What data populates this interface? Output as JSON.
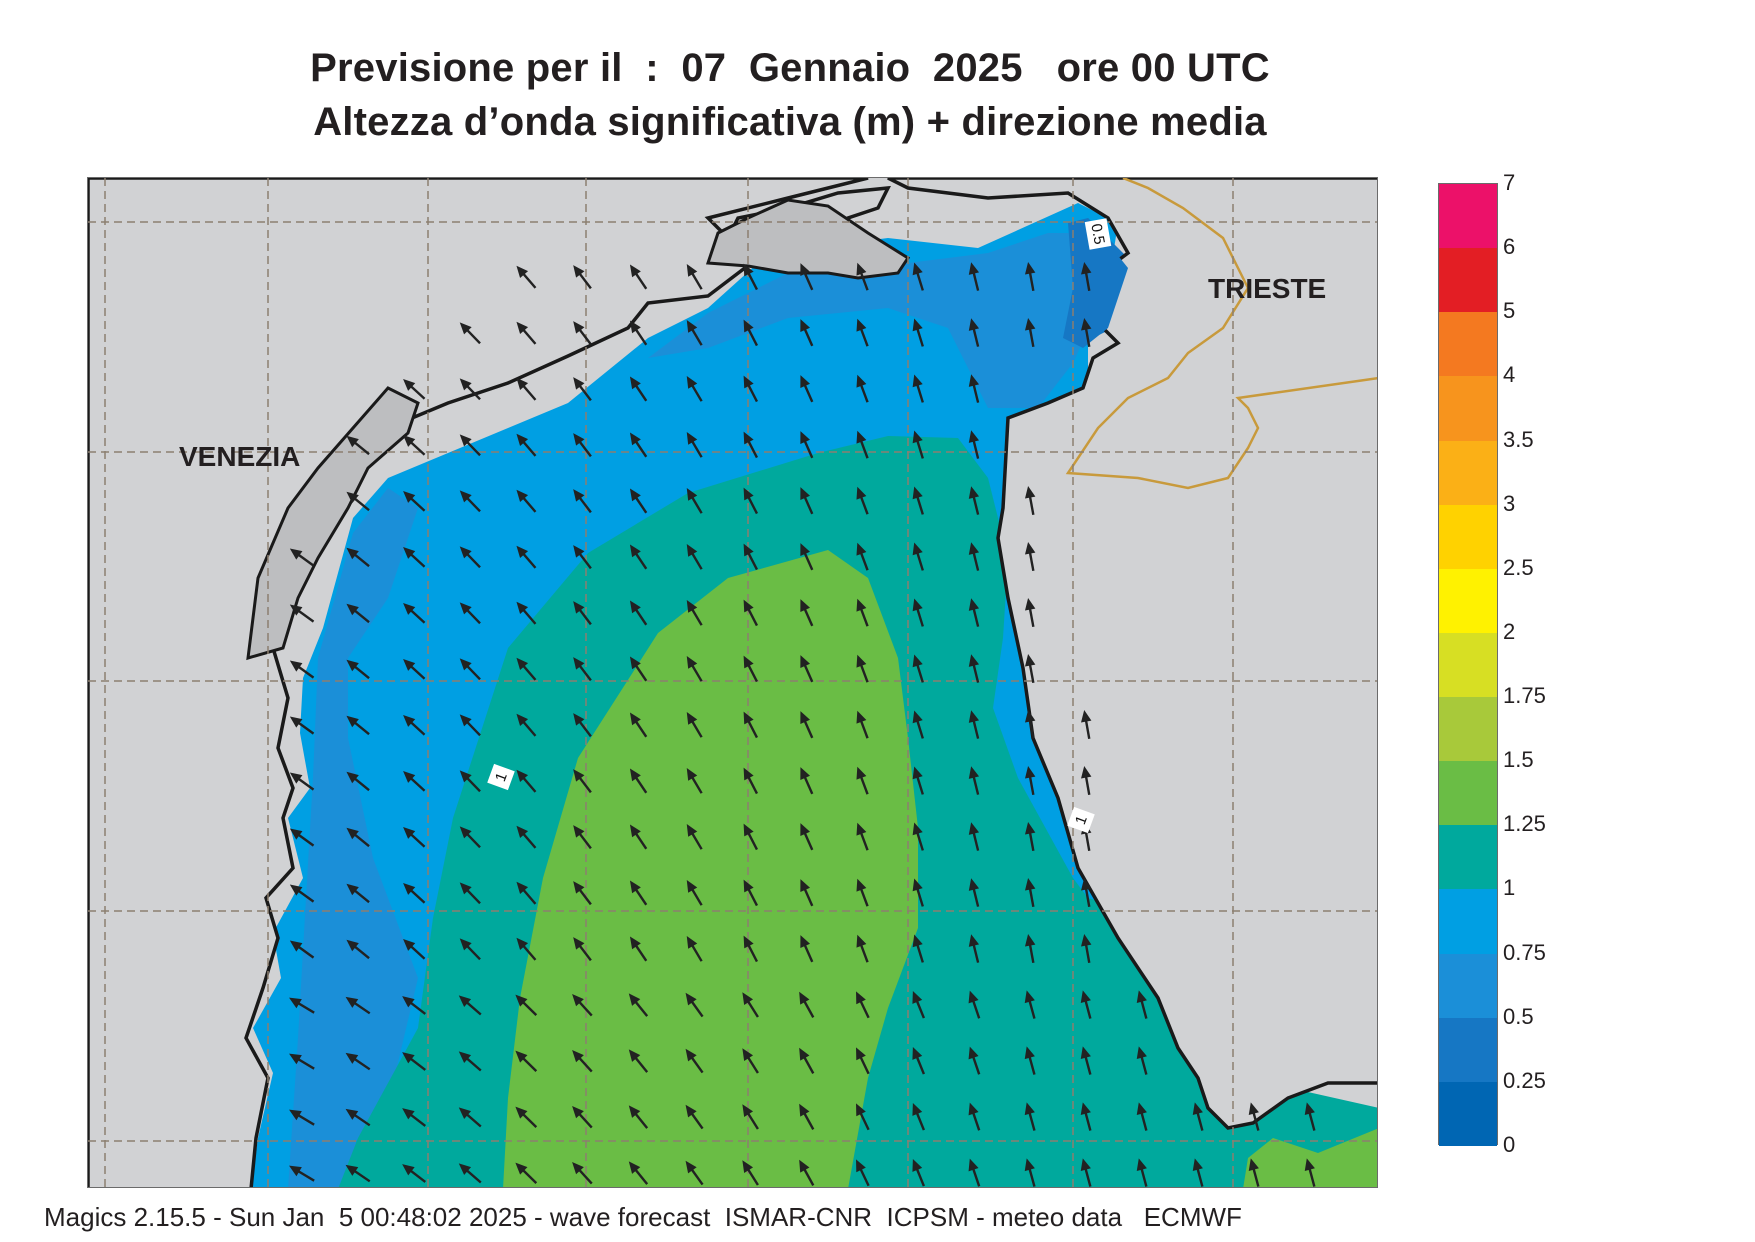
{
  "header": {
    "title_line1": "Previsione per il  :  07  Gennaio  2025   ore 00 UTC",
    "title_line2": "Altezza d’onda significativa (m) + direzione media"
  },
  "map": {
    "place_labels": [
      {
        "id": "venezia",
        "text": "VENEZIA"
      },
      {
        "id": "trieste",
        "text": "TRIESTE"
      }
    ],
    "contour_labels": [
      "0.5",
      "1",
      "1"
    ],
    "wave_direction": "north-northwest",
    "colors": {
      "land": "#d1d2d4",
      "coastline": "#1a1a1a",
      "border": "#c89a3c",
      "grid": "#8c7f70"
    }
  },
  "legend": {
    "ticks": [
      "7",
      "6",
      "5",
      "4",
      "3.5",
      "3",
      "2.5",
      "2",
      "1.75",
      "1.5",
      "1.25",
      "1",
      "0.75",
      "0.5",
      "0.25",
      "0"
    ],
    "colors_top_to_bottom": [
      "#ec1169",
      "#e31e24",
      "#f47920",
      "#f7941d",
      "#fbb016",
      "#ffd200",
      "#fff200",
      "#d7df23",
      "#a8c93a",
      "#6abd45",
      "#00a99d",
      "#009fe3",
      "#1b8fd8",
      "#1677c4",
      "#0066b3"
    ]
  },
  "footer": {
    "text": "Magics 2.15.5 - Sun Jan  5 00:48:02 2025 - wave forecast  ISMAR-CNR  ICPSM - meteo data   ECMWF"
  }
}
